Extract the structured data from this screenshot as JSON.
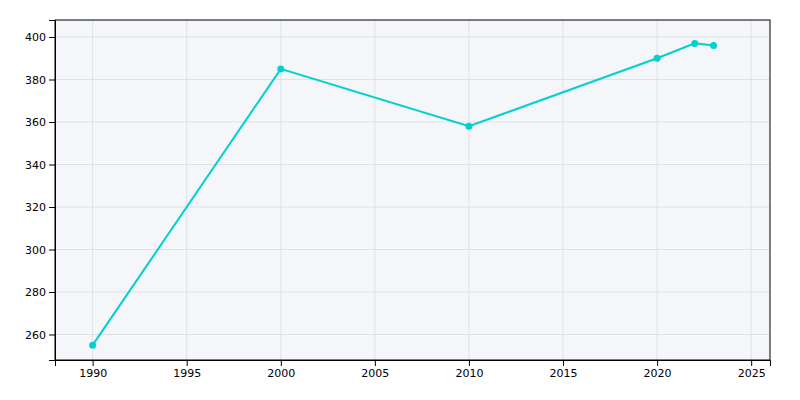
{
  "chart_data": {
    "type": "line",
    "x": [
      1990,
      2000,
      2010,
      2020,
      2022,
      2023
    ],
    "values": [
      255,
      385,
      358,
      390,
      397,
      396
    ],
    "color": "#00d0d0",
    "marker": "circle",
    "xlim": [
      1988,
      2026
    ],
    "ylim": [
      248,
      408
    ],
    "xticks": [
      1990,
      1995,
      2000,
      2005,
      2010,
      2015,
      2020,
      2025
    ],
    "yticks": [
      260,
      280,
      300,
      320,
      340,
      360,
      380,
      400
    ],
    "grid": true
  }
}
